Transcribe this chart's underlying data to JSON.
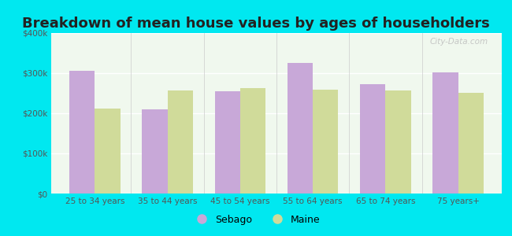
{
  "title": "Breakdown of mean house values by ages of householders",
  "categories": [
    "25 to 34 years",
    "35 to 44 years",
    "45 to 54 years",
    "55 to 64 years",
    "65 to 74 years",
    "75 years+"
  ],
  "sebago_values": [
    305000,
    210000,
    255000,
    325000,
    272000,
    302000
  ],
  "maine_values": [
    212000,
    257000,
    262000,
    258000,
    257000,
    250000
  ],
  "sebago_color": "#c8a8d8",
  "maine_color": "#d0db9a",
  "background_outer": "#00e8f0",
  "background_inner_bottom": "#d8efcc",
  "background_inner_top": "#f0f8ee",
  "ylim": [
    0,
    400000
  ],
  "yticks": [
    0,
    100000,
    200000,
    300000,
    400000
  ],
  "ytick_labels": [
    "$0",
    "$100k",
    "$200k",
    "$300k",
    "$400k"
  ],
  "legend_sebago": "Sebago",
  "legend_maine": "Maine",
  "title_fontsize": 13,
  "bar_width": 0.35,
  "watermark": "City-Data.com"
}
